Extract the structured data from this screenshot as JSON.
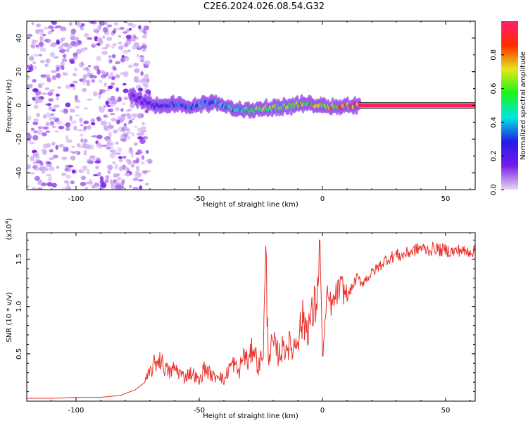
{
  "title": "C2E6.2024.026.08.54.G32",
  "chart_data": [
    {
      "type": "heatmap",
      "xlabel": "Height of straight line (km)",
      "ylabel": "Frequency (Hz)",
      "xlim": [
        -120,
        62
      ],
      "ylim": [
        -50,
        50
      ],
      "xticks": [
        "-100",
        "-50",
        "0",
        "50"
      ],
      "xtick_values": [
        -100,
        -50,
        0,
        50
      ],
      "yticks": [
        "40",
        "20",
        "0",
        "-20",
        "-40"
      ],
      "ytick_values": [
        40,
        20,
        0,
        -20,
        -40
      ],
      "colorbar": {
        "label": "Normalized spectral amplitude",
        "range": [
          0,
          1
        ],
        "ticks": [
          "0.0",
          "0.2",
          "0.4",
          "0.6",
          "0.8"
        ],
        "tick_values": [
          0.0,
          0.2,
          0.4,
          0.6,
          0.8
        ],
        "colors": [
          "#e6d7f5",
          "#7a1ae6",
          "#1e1ee6",
          "#00e6e6",
          "#19f519",
          "#e6e61a",
          "#ff2a00",
          "#ff1e6e"
        ]
      },
      "noise_region_x": [
        -120,
        -78
      ],
      "ridge": {
        "description_values": "center frequency (Hz) of the signal band vs height (km)",
        "x": [
          -78,
          -72,
          -66,
          -60,
          -54,
          -48,
          -42,
          -36,
          -30,
          -24,
          -18,
          -12,
          -6,
          0,
          6,
          12,
          18,
          30,
          45,
          62
        ],
        "freq": [
          6,
          2,
          -1,
          1,
          -1,
          1,
          1,
          -2,
          -3,
          -2,
          -1,
          0,
          1,
          0,
          -1,
          0,
          0,
          0,
          0,
          0
        ],
        "amplitude": [
          0.15,
          0.25,
          0.3,
          0.35,
          0.35,
          0.4,
          0.45,
          0.5,
          0.6,
          0.65,
          0.7,
          0.75,
          0.8,
          0.85,
          0.9,
          0.95,
          1.0,
          1.0,
          1.0,
          1.0
        ]
      }
    },
    {
      "type": "line",
      "xlabel": "Height of straight line (km)",
      "ylabel": "SNR (10 * v/v)",
      "y_scale_label": "(x10",
      "y_scale_exp": "4",
      "y_scale_close": ")",
      "xlim": [
        -120,
        62
      ],
      "ylim": [
        0,
        1.78
      ],
      "xticks": [
        "-100",
        "-50",
        "0",
        "50"
      ],
      "xtick_values": [
        -100,
        -50,
        0,
        50
      ],
      "yticks": [
        "0.5",
        "1.0",
        "1.5"
      ],
      "ytick_values": [
        0.5,
        1.0,
        1.5
      ],
      "series": [
        {
          "color": "#e8302a",
          "x": [
            -120,
            -110,
            -100,
            -90,
            -82,
            -76,
            -72,
            -70,
            -68,
            -66,
            -64,
            -62,
            -60,
            -58,
            -56,
            -54,
            -52,
            -50,
            -48,
            -46,
            -44,
            -42,
            -40,
            -38,
            -36,
            -34,
            -32,
            -30,
            -28,
            -26,
            -24,
            -23,
            -22,
            -20,
            -18,
            -16,
            -14,
            -12,
            -10,
            -8,
            -6,
            -4,
            -3,
            -2,
            -1,
            0,
            1,
            2,
            4,
            6,
            8,
            10,
            12,
            14,
            16,
            18,
            20,
            22,
            24,
            26,
            28,
            30,
            32,
            34,
            36,
            38,
            40,
            42,
            44,
            46,
            48,
            50,
            52,
            54,
            56,
            58,
            60,
            62
          ],
          "y": [
            0.03,
            0.03,
            0.04,
            0.04,
            0.06,
            0.12,
            0.2,
            0.3,
            0.4,
            0.45,
            0.35,
            0.3,
            0.35,
            0.3,
            0.25,
            0.3,
            0.28,
            0.2,
            0.35,
            0.3,
            0.25,
            0.3,
            0.2,
            0.35,
            0.4,
            0.3,
            0.5,
            0.4,
            0.6,
            0.35,
            0.55,
            1.5,
            0.5,
            0.6,
            0.5,
            0.55,
            0.6,
            0.55,
            0.7,
            0.85,
            0.8,
            0.9,
            1.0,
            1.2,
            1.7,
            0.45,
            0.8,
            1.1,
            1.0,
            1.15,
            1.2,
            1.1,
            1.2,
            1.3,
            1.25,
            1.3,
            1.35,
            1.4,
            1.45,
            1.5,
            1.52,
            1.55,
            1.53,
            1.56,
            1.58,
            1.6,
            1.62,
            1.6,
            1.6,
            1.62,
            1.59,
            1.6,
            1.58,
            1.58,
            1.6,
            1.57,
            1.59,
            1.58
          ]
        }
      ]
    }
  ]
}
